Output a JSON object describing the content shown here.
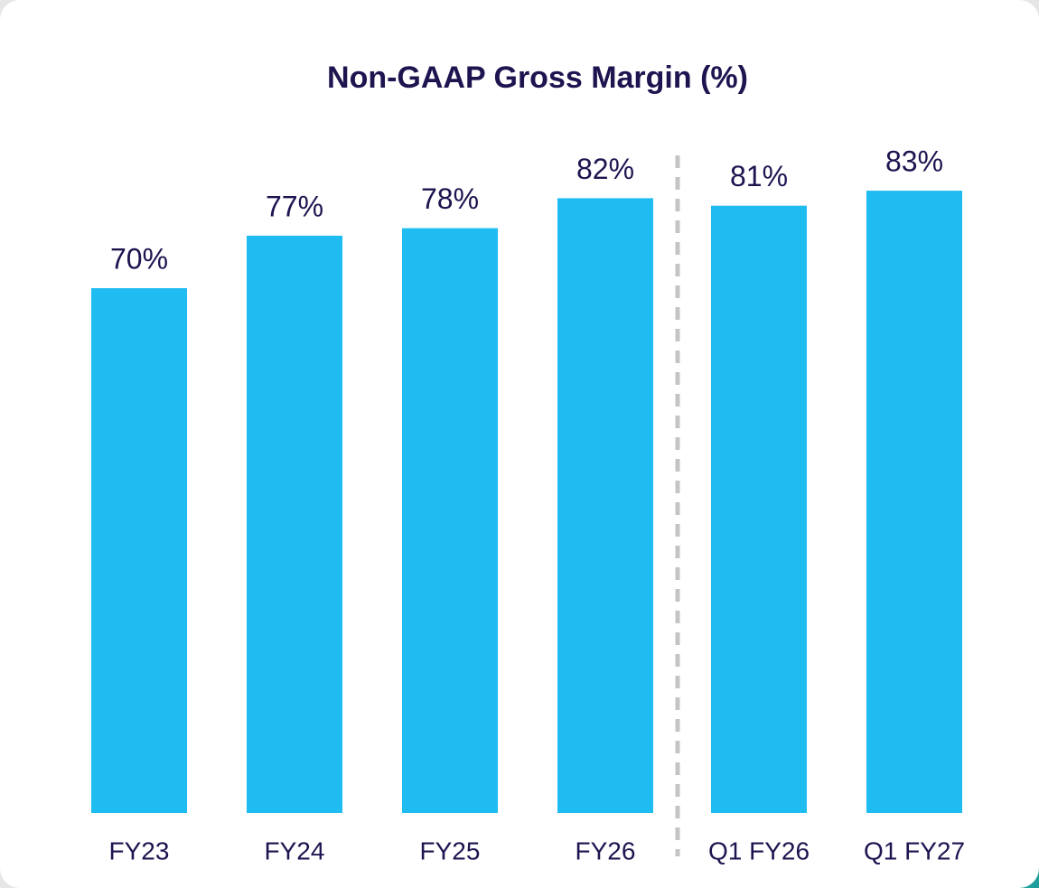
{
  "chart_data": {
    "type": "bar",
    "title": "Non-GAAP Gross Margin (%)",
    "categories": [
      "FY23",
      "FY24",
      "FY25",
      "FY26",
      "Q1 FY26",
      "Q1 FY27"
    ],
    "values": [
      70,
      77,
      78,
      82,
      81,
      83
    ],
    "value_labels": [
      "70%",
      "77%",
      "78%",
      "82%",
      "81%",
      "83%"
    ],
    "color": "#1fbcf2"
  }
}
